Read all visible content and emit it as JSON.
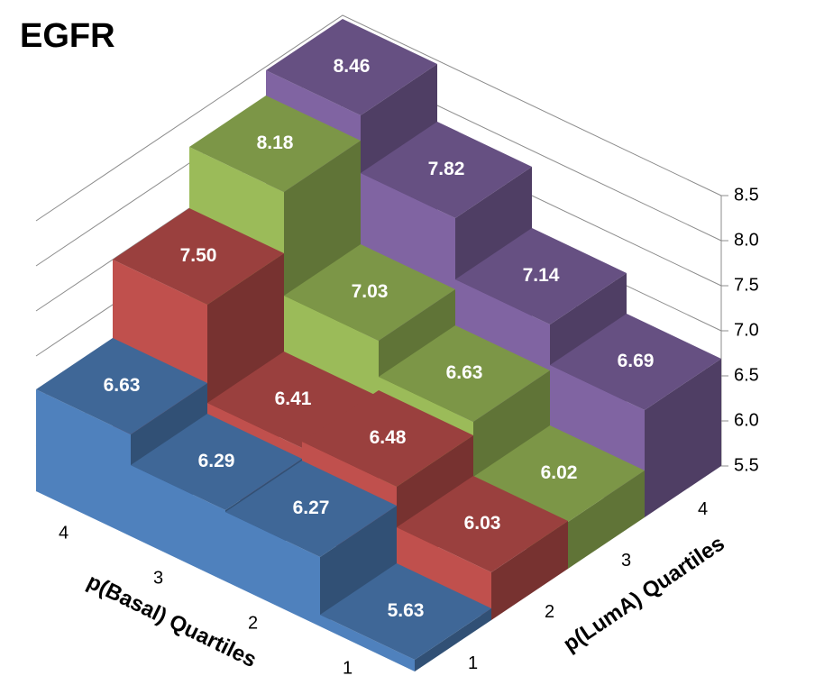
{
  "chart_data": {
    "type": "bar3d",
    "title": "EGFR",
    "x_label": "p(Basal) Quartiles",
    "z_label": "p(LumA) Quartiles",
    "categories": [
      "4",
      "3",
      "2",
      "1"
    ],
    "series": [
      {
        "name": "1",
        "color": "#4f81bd",
        "values": [
          6.63,
          6.29,
          6.27,
          5.63
        ],
        "value_labels": [
          "6.63",
          "6.29",
          "6.27",
          "5.63"
        ]
      },
      {
        "name": "2",
        "color": "#c0504d",
        "values": [
          7.5,
          6.41,
          6.48,
          6.03
        ],
        "value_labels": [
          "7.50",
          "6.41",
          "6.48",
          "6.03"
        ]
      },
      {
        "name": "3",
        "color": "#9bbb59",
        "values": [
          8.18,
          7.03,
          6.63,
          6.02
        ],
        "value_labels": [
          "8.18",
          "7.03",
          "6.63",
          "6.02"
        ]
      },
      {
        "name": "4",
        "color": "#8064a2",
        "values": [
          8.46,
          7.82,
          7.14,
          6.69
        ],
        "value_labels": [
          "8.46",
          "7.82",
          "7.14",
          "6.69"
        ]
      }
    ],
    "ylim": [
      5.5,
      8.5
    ],
    "yticks": [
      5.5,
      {
        "value": 6,
        "label": "6.0"
      },
      6.5,
      {
        "value": 7,
        "label": "7.0"
      },
      7.5,
      {
        "value": 8,
        "label": "8.0"
      },
      8.5
    ],
    "grid": true
  }
}
